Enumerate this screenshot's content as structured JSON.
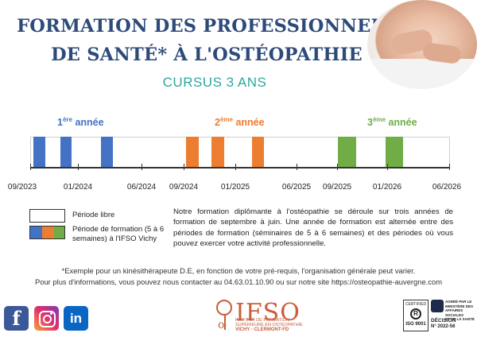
{
  "header": {
    "title_line1": "FORMATION DES PROFESSIONNELS",
    "title_line2": "DE SANTÉ* À L'OSTÉOPATHIE",
    "subtitle": "CURSUS 3 ANS"
  },
  "colors": {
    "title": "#2d4a7a",
    "subtitle": "#2aa7a1",
    "year1": "#4472c4",
    "year2": "#ed7d31",
    "year3": "#70ad47"
  },
  "years": [
    {
      "num": "1",
      "sup": "ère",
      "word": "année"
    },
    {
      "num": "2",
      "sup": "ème",
      "word": "année"
    },
    {
      "num": "3",
      "sup": "ème",
      "word": "année"
    }
  ],
  "timeline": {
    "dates": [
      "09/2023",
      "01/2024",
      "06/2024",
      "09/2024",
      "01/2025",
      "06/2025",
      "09/2025",
      "01/2026",
      "06/2026"
    ]
  },
  "legend": {
    "free": "Période libre",
    "training_line1": "Période de formation (5 à 6",
    "training_line2": "semaines) à l'IFSO Vichy"
  },
  "description": "Notre formation diplômante à l'ostéopathie se déroule sur trois années de formation de septembre à juin. Une année de formation est alternée entre des périodes de formation (séminaires de 5 à 6 semaines) et des périodes où vous pouvez exercer votre activité professionnelle.",
  "footnote": "*Exemple pour un kinésithérapeute D.E, en fonction de votre pré-requis, l'organisation générale peut varier.",
  "contact": "Pour plus d'informations, vous pouvez nous contacter au 04.63.01.10.90 ou sur notre site https://osteopathie-auvergne.com",
  "social": [
    "f",
    "in"
  ],
  "logo": {
    "o": "o",
    "name": "IFSO",
    "line1": "INSTITUT DE FORMATION",
    "line2": "SUPÉRIEURE EN OSTÉOPATHIE",
    "line3": "VICHY - CLERMONT-FD"
  },
  "certification": {
    "certified": "CERTIFIED",
    "iso": "ISO 9001",
    "agree1": "AGRÉÉ PAR LE",
    "agree2": "MINISTÈRE DES",
    "agree3": "AFFAIRES SOCIALES",
    "agree4": "ET DE LA SANTÉ",
    "decision": "DÉCISION",
    "number": "N° 2022-56"
  }
}
